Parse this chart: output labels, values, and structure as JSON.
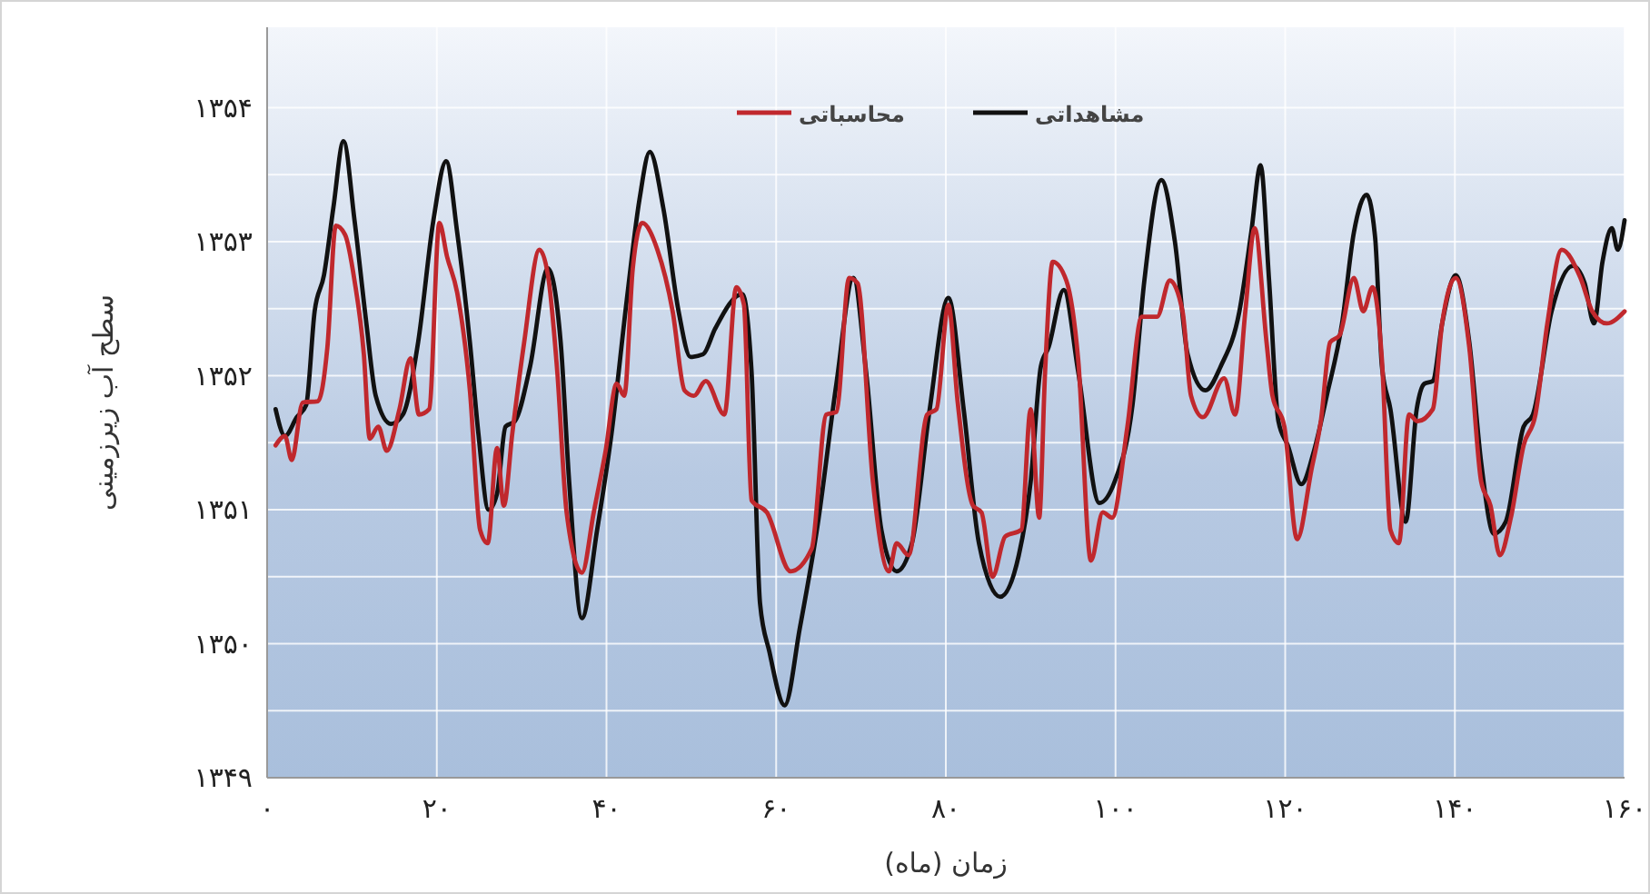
{
  "chart_data": {
    "type": "line",
    "xlabel": "زمان (ماه)",
    "ylabel": "سطح آب زیرزمینی",
    "xlim": [
      0,
      160
    ],
    "xticks": [
      {
        "value": 0,
        "label": "۰"
      },
      {
        "value": 20,
        "label": "۲۰"
      },
      {
        "value": 40,
        "label": "۴۰"
      },
      {
        "value": 60,
        "label": "۶۰"
      },
      {
        "value": 80,
        "label": "۸۰"
      },
      {
        "value": 100,
        "label": "۱۰۰"
      },
      {
        "value": 120,
        "label": "۱۲۰"
      },
      {
        "value": 140,
        "label": "۱۴۰"
      },
      {
        "value": 160,
        "label": "۱۶۰"
      }
    ],
    "ylim": [
      1349,
      1354.6
    ],
    "yticks": [
      {
        "value": 1349,
        "label": "۱۳۴۹"
      },
      {
        "value": 1349.5,
        "label": null
      },
      {
        "value": 1350,
        "label": "۱۳۵۰"
      },
      {
        "value": 1350.5,
        "label": null
      },
      {
        "value": 1351,
        "label": "۱۳۵۱"
      },
      {
        "value": 1351.5,
        "label": null
      },
      {
        "value": 1352,
        "label": "۱۳۵۲"
      },
      {
        "value": 1352.5,
        "label": null
      },
      {
        "value": 1353,
        "label": "۱۳۵۳"
      },
      {
        "value": 1353.5,
        "label": null
      },
      {
        "value": 1354,
        "label": "۱۳۵۴"
      }
    ],
    "grid": true,
    "legend": "top",
    "marker": "none",
    "line_style": "solid",
    "series": [
      {
        "name": "مشاهداتی",
        "color": "#111111",
        "x": [
          1,
          2.1,
          3.5,
          4.6,
          5.6,
          6.7,
          7.8,
          9,
          10.3,
          11.7,
          12.8,
          14.6,
          16,
          17.8,
          19.6,
          21.1,
          22.4,
          23.9,
          24.9,
          26.1,
          27.1,
          28.1,
          29.2,
          31,
          33.1,
          34.6,
          35.6,
          37.1,
          38.9,
          40.6,
          42.4,
          43.9,
          45.1,
          46.7,
          48.5,
          49.9,
          51.4,
          52.8,
          56,
          57.1,
          58.1,
          59.2,
          61,
          62.8,
          64.9,
          67.1,
          69.1,
          70.6,
          72.4,
          74.2,
          76,
          78.1,
          80.3,
          82.1,
          83.9,
          86.4,
          88.6,
          90,
          91.2,
          92.1,
          93.9,
          95.6,
          98.1,
          99.9,
          102,
          103.4,
          105.4,
          107,
          108.5,
          110.6,
          112.4,
          114.6,
          116,
          117.1,
          118.1,
          119.2,
          120.3,
          121.9,
          123.4,
          124.9,
          126.7,
          128.1,
          129.6,
          130.6,
          131.4,
          132.4,
          134.2,
          135.5,
          136.4,
          137.4,
          138.5,
          140.1,
          141.7,
          143.1,
          144.6,
          146,
          148.1,
          149.2,
          151.4,
          153.9,
          155.3,
          156.4,
          157.4,
          158.5,
          159.2,
          160
        ],
        "values": [
          1351.75,
          1351.55,
          1351.69,
          1351.78,
          1352.48,
          1352.75,
          1353.25,
          1353.75,
          1353.16,
          1352.39,
          1351.85,
          1351.64,
          1351.71,
          1352.25,
          1353.16,
          1353.6,
          1353.07,
          1352.25,
          1351.57,
          1351.0,
          1351.12,
          1351.62,
          1351.66,
          1352.07,
          1352.8,
          1352.25,
          1351.21,
          1350.19,
          1350.85,
          1351.57,
          1352.57,
          1353.32,
          1353.67,
          1353.25,
          1352.48,
          1352.14,
          1352.16,
          1352.35,
          1352.61,
          1352.03,
          1350.3,
          1349.94,
          1349.54,
          1350.12,
          1350.89,
          1351.94,
          1352.73,
          1352.03,
          1350.85,
          1350.54,
          1350.75,
          1351.75,
          1352.58,
          1351.75,
          1350.75,
          1350.35,
          1350.66,
          1351.21,
          1352.07,
          1352.21,
          1352.64,
          1352.03,
          1351.05,
          1351.21,
          1351.78,
          1352.71,
          1353.46,
          1353.0,
          1352.16,
          1351.89,
          1352.07,
          1352.48,
          1353.07,
          1353.57,
          1352.71,
          1351.66,
          1351.48,
          1351.19,
          1351.44,
          1351.85,
          1352.39,
          1353.07,
          1353.35,
          1353.03,
          1352.07,
          1351.75,
          1350.91,
          1351.75,
          1351.94,
          1351.96,
          1352.39,
          1352.75,
          1352.25,
          1351.35,
          1350.82,
          1350.91,
          1351.62,
          1351.71,
          1352.48,
          1352.82,
          1352.69,
          1352.39,
          1352.85,
          1353.1,
          1352.94,
          1353.16
        ]
      },
      {
        "name": "محاسباتی",
        "color": "#c0282d",
        "x": [
          1,
          2.1,
          2.9,
          4.2,
          6,
          7.1,
          8.1,
          9.2,
          10.3,
          11.4,
          12.1,
          13.1,
          14.1,
          15.6,
          16.9,
          17.9,
          19.1,
          20.3,
          21.2,
          22.4,
          23.9,
          25.1,
          26,
          27.1,
          27.9,
          28.9,
          30.3,
          32.1,
          33.1,
          34.2,
          35.3,
          37.1,
          38.5,
          39.9,
          41.2,
          42.1,
          43.1,
          44.2,
          46,
          47.8,
          49.2,
          50.3,
          51.7,
          53.9,
          55.3,
          56.2,
          57.1,
          58.9,
          61.7,
          64.2,
          65.9,
          67.1,
          68.6,
          69.6,
          71.4,
          73.3,
          74.2,
          75.6,
          77.8,
          78.9,
          80.3,
          81.4,
          83.2,
          84.2,
          85.5,
          87,
          88.9,
          90,
          91,
          91.7,
          92.6,
          94.2,
          95.6,
          97.1,
          98.5,
          99.6,
          101.4,
          103.1,
          104.9,
          106.4,
          107.9,
          108.9,
          110.3,
          112.8,
          114.1,
          115.3,
          116.4,
          117.8,
          118.5,
          119.9,
          121.4,
          123.1,
          124.2,
          125.3,
          126.4,
          128.1,
          129.2,
          130.3,
          131.4,
          132.4,
          133.4,
          134.6,
          135.6,
          137.4,
          138.5,
          140.1,
          141.7,
          143.1,
          144.2,
          145.3,
          146.6,
          148.1,
          149.5,
          150.9,
          152.6,
          154.8,
          156.2,
          157.9,
          160
        ],
        "values": [
          1351.48,
          1351.55,
          1351.37,
          1351.8,
          1351.81,
          1352.21,
          1353.12,
          1353.05,
          1352.71,
          1352.16,
          1351.53,
          1351.62,
          1351.44,
          1351.75,
          1352.13,
          1351.71,
          1351.75,
          1353.14,
          1352.89,
          1352.62,
          1351.89,
          1350.85,
          1350.75,
          1351.46,
          1351.03,
          1351.57,
          1352.25,
          1352.94,
          1352.75,
          1352.03,
          1350.98,
          1350.53,
          1350.98,
          1351.44,
          1351.94,
          1351.85,
          1352.8,
          1353.14,
          1352.94,
          1352.48,
          1351.89,
          1351.85,
          1351.96,
          1351.71,
          1352.66,
          1352.53,
          1351.07,
          1350.98,
          1350.54,
          1350.71,
          1351.71,
          1351.73,
          1352.73,
          1352.69,
          1351.21,
          1350.54,
          1350.75,
          1350.66,
          1351.71,
          1351.75,
          1352.53,
          1351.8,
          1351.03,
          1350.98,
          1350.5,
          1350.8,
          1350.85,
          1351.75,
          1350.94,
          1352.03,
          1352.85,
          1352.71,
          1352.12,
          1350.62,
          1350.98,
          1350.94,
          1351.62,
          1352.44,
          1352.44,
          1352.71,
          1352.48,
          1351.85,
          1351.69,
          1351.98,
          1351.71,
          1352.48,
          1353.1,
          1352.25,
          1351.85,
          1351.62,
          1350.78,
          1351.3,
          1351.66,
          1352.25,
          1352.3,
          1352.73,
          1352.48,
          1352.66,
          1352.12,
          1350.85,
          1350.75,
          1351.71,
          1351.66,
          1351.75,
          1352.39,
          1352.73,
          1352.21,
          1351.21,
          1351.03,
          1350.66,
          1350.94,
          1351.48,
          1351.71,
          1352.39,
          1352.94,
          1352.73,
          1352.48,
          1352.39,
          1352.48
        ]
      }
    ]
  }
}
